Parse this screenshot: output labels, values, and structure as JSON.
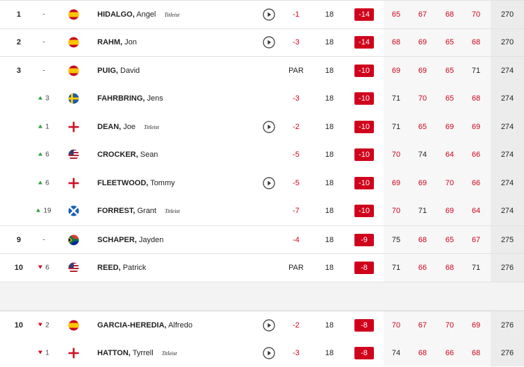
{
  "rows": [
    {
      "pos": 1,
      "move": "-",
      "last": "HIDALGO,",
      "first": "Angel",
      "sponsor": "Titleist",
      "today": -1,
      "thru": 18,
      "total": -14,
      "rounds": [
        65,
        67,
        68,
        70
      ],
      "tot": 270
    },
    {
      "pos": 2,
      "move": "-",
      "last": "RAHM,",
      "first": "Jon",
      "today": -3,
      "thru": 18,
      "total": -14,
      "rounds": [
        68,
        69,
        65,
        68
      ],
      "tot": 270
    },
    {
      "pos": 3,
      "move": "-",
      "last": "PUIG,",
      "first": "David",
      "today": "PAR",
      "thru": 18,
      "total": -10,
      "rounds": [
        69,
        69,
        65,
        71
      ],
      "tot": 274
    },
    {
      "move": 3,
      "last": "FAHRBRING,",
      "first": "Jens",
      "today": -3,
      "thru": 18,
      "total": -10,
      "rounds": [
        71,
        70,
        65,
        68
      ],
      "tot": 274
    },
    {
      "move": 1,
      "last": "DEAN,",
      "first": "Joe",
      "sponsor": "Titleist",
      "today": -2,
      "thru": 18,
      "total": -10,
      "rounds": [
        71,
        65,
        69,
        69
      ],
      "tot": 274
    },
    {
      "move": 6,
      "last": "CROCKER,",
      "first": "Sean",
      "today": -5,
      "thru": 18,
      "total": -10,
      "rounds": [
        70,
        74,
        64,
        66
      ],
      "tot": 274
    },
    {
      "move": 6,
      "last": "FLEETWOOD,",
      "first": "Tommy",
      "today": -5,
      "thru": 18,
      "total": -10,
      "rounds": [
        69,
        69,
        70,
        66
      ],
      "tot": 274
    },
    {
      "move": 19,
      "last": "FORREST,",
      "first": "Grant",
      "sponsor": "Titleist",
      "today": -7,
      "thru": 18,
      "total": -10,
      "rounds": [
        70,
        71,
        69,
        64
      ],
      "tot": 274
    },
    {
      "pos": 9,
      "move": "-",
      "last": "SCHAPER,",
      "first": "Jayden",
      "today": -4,
      "thru": 18,
      "total": -9,
      "rounds": [
        75,
        68,
        65,
        67
      ],
      "tot": 275
    },
    {
      "pos": 10,
      "move": 6,
      "last": "REED,",
      "first": "Patrick",
      "today": "PAR",
      "thru": 18,
      "total": -8,
      "rounds": [
        71,
        66,
        68,
        71
      ],
      "tot": 276
    },
    {
      "pos": 10,
      "move": 2,
      "last": "GARCIA-HEREDIA,",
      "first": "Alfredo",
      "today": -2,
      "thru": 18,
      "total": -8,
      "rounds": [
        70,
        67,
        70,
        69
      ],
      "tot": 276
    },
    {
      "move": 1,
      "last": "HATTON,",
      "first": "Tyrrell",
      "sponsor": "Titleist",
      "today": -3,
      "thru": 18,
      "total": -8,
      "rounds": [
        74,
        68,
        66,
        68
      ],
      "tot": 276
    }
  ]
}
